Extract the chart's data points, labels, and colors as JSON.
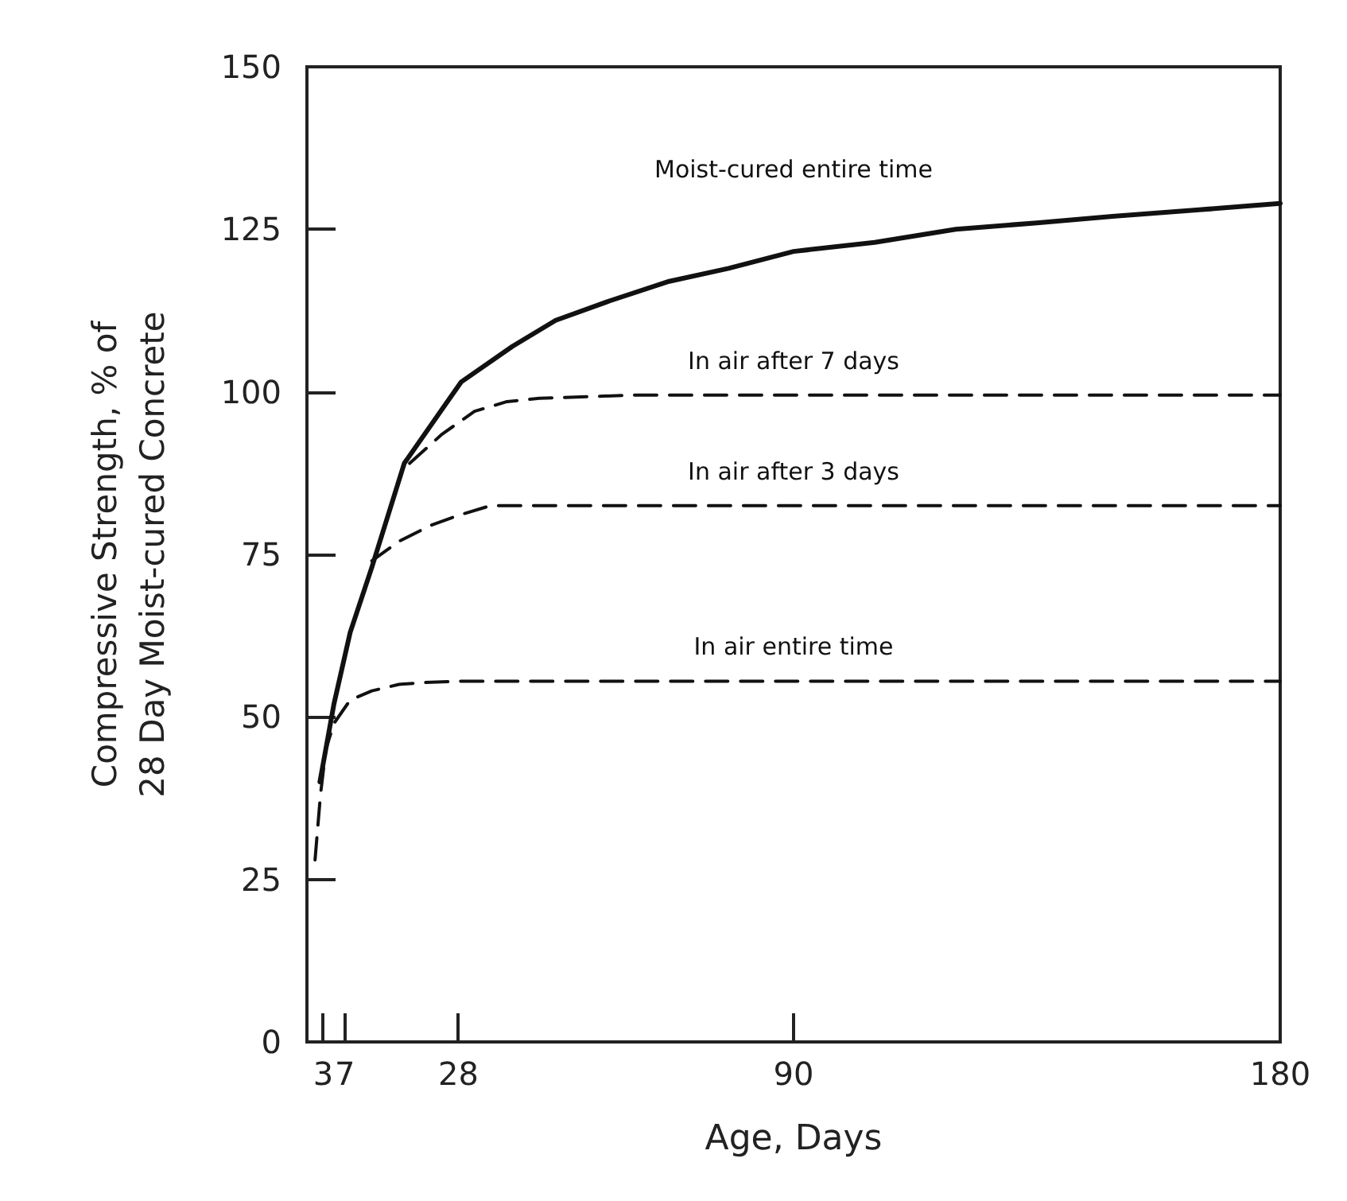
{
  "chart_data": {
    "type": "line",
    "xlabel": "Age, Days",
    "ylabel": "Compressive Strength, % of\n28 Day Moist-cured Concrete",
    "xlim": [
      0,
      180
    ],
    "xticks": [
      3,
      7,
      28,
      90,
      180
    ],
    "ylim": [
      0,
      150
    ],
    "yticks": [
      0,
      25,
      50,
      75,
      100,
      125,
      150
    ],
    "grid": false,
    "legend": false,
    "marker": "none",
    "series": [
      {
        "name": "Moist-cured entire time",
        "color": "#111111",
        "line_style": "solid",
        "x": [
          2.4,
          5,
          8,
          12,
          18,
          28.5,
          38,
          46,
          56,
          67,
          78,
          90,
          105,
          120,
          135,
          149,
          165,
          180
        ],
        "values": [
          40,
          52,
          63,
          73,
          89,
          101.5,
          107,
          111,
          114,
          117,
          119,
          121.6,
          123,
          125,
          126,
          127,
          128,
          129
        ]
      },
      {
        "name": "In air after 7 days",
        "color": "#111111",
        "line_style": "dashed",
        "x": [
          19,
          25,
          31,
          37,
          43,
          60,
          90,
          120,
          150,
          180
        ],
        "values": [
          89,
          93.5,
          97,
          98.5,
          99,
          99.5,
          99.5,
          99.5,
          99.5,
          99.5
        ]
      },
      {
        "name": "In air after 3 days",
        "color": "#111111",
        "line_style": "dashed",
        "x": [
          12,
          17,
          23,
          28,
          34,
          40,
          60,
          90,
          120,
          150,
          180
        ],
        "values": [
          74,
          77,
          79.5,
          81,
          82.5,
          82.5,
          82.5,
          82.5,
          82.5,
          82.5,
          82.5
        ]
      },
      {
        "name": "In air entire time",
        "color": "#111111",
        "line_style": "dashed",
        "x": [
          1.5,
          2.5,
          3.5,
          5,
          8,
          12,
          17,
          22,
          28.5,
          40,
          60,
          90,
          120,
          150,
          180
        ],
        "values": [
          28,
          38,
          45,
          49,
          52.6,
          54,
          55,
          55.3,
          55.5,
          55.5,
          55.5,
          55.5,
          55.5,
          55.5,
          55.5
        ]
      }
    ]
  }
}
